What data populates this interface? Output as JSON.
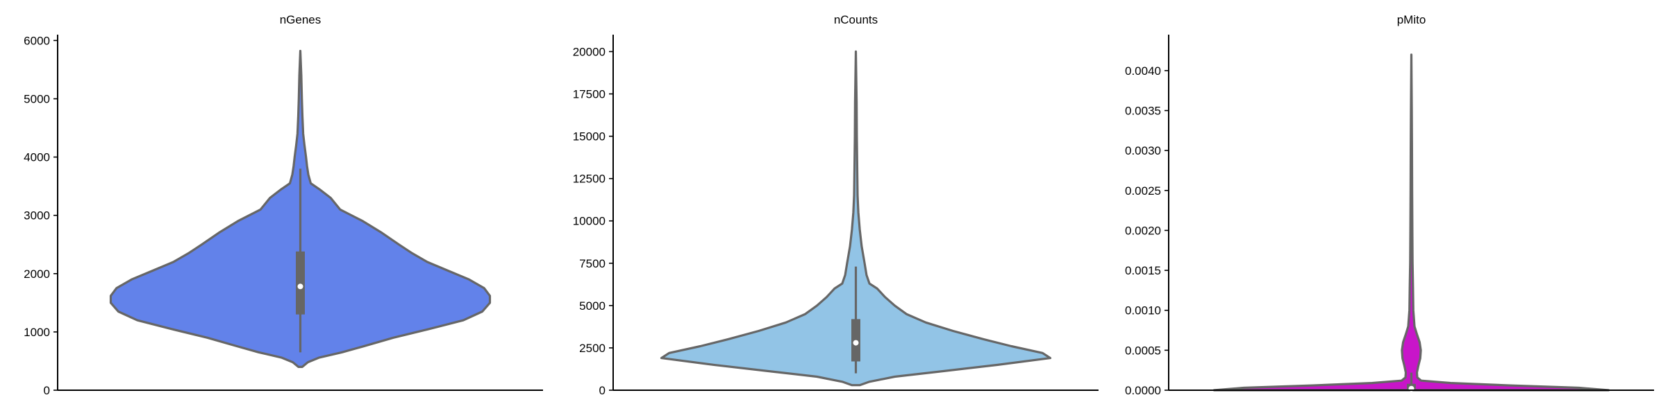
{
  "chart_data": [
    {
      "type": "violin",
      "title": "nGenes",
      "xlabel": "",
      "ylabel": "",
      "ylim": [
        0,
        6100
      ],
      "yticks": [
        0,
        1000,
        2000,
        3000,
        4000,
        5000,
        6000
      ],
      "ytick_labels": [
        "0",
        "1000",
        "2000",
        "3000",
        "4000",
        "5000",
        "6000"
      ],
      "color": "#6282EA",
      "min": 400,
      "max": 5820,
      "quartiles": [
        1300,
        1780,
        2380
      ],
      "whisker": [
        650,
        3800
      ],
      "density": [
        [
          400,
          0.01
        ],
        [
          480,
          0.04
        ],
        [
          560,
          0.1
        ],
        [
          650,
          0.22
        ],
        [
          750,
          0.33
        ],
        [
          900,
          0.49
        ],
        [
          1050,
          0.68
        ],
        [
          1200,
          0.86
        ],
        [
          1350,
          0.96
        ],
        [
          1500,
          1.0
        ],
        [
          1620,
          1.0
        ],
        [
          1750,
          0.97
        ],
        [
          1900,
          0.89
        ],
        [
          2050,
          0.78
        ],
        [
          2200,
          0.67
        ],
        [
          2350,
          0.59
        ],
        [
          2500,
          0.52
        ],
        [
          2700,
          0.43
        ],
        [
          2900,
          0.33
        ],
        [
          3100,
          0.21
        ],
        [
          3300,
          0.16
        ],
        [
          3450,
          0.1
        ],
        [
          3550,
          0.055
        ],
        [
          3700,
          0.042
        ],
        [
          3850,
          0.035
        ],
        [
          4000,
          0.03
        ],
        [
          4200,
          0.022
        ],
        [
          4400,
          0.015
        ],
        [
          4700,
          0.011
        ],
        [
          5000,
          0.008
        ],
        [
          5400,
          0.005
        ],
        [
          5820,
          0.0
        ]
      ]
    },
    {
      "type": "violin",
      "title": "nCounts",
      "xlabel": "",
      "ylabel": "",
      "ylim": [
        0,
        21000
      ],
      "yticks": [
        0,
        2500,
        5000,
        7500,
        10000,
        12500,
        15000,
        17500,
        20000
      ],
      "ytick_labels": [
        "0",
        "2500",
        "5000",
        "7500",
        "10000",
        "12500",
        "15000",
        "17500",
        "20000"
      ],
      "color": "#92C4E6",
      "min": 300,
      "max": 20000,
      "quartiles": [
        1700,
        2800,
        4200
      ],
      "whisker": [
        1000,
        7300
      ],
      "density": [
        [
          300,
          0.02
        ],
        [
          500,
          0.07
        ],
        [
          800,
          0.2
        ],
        [
          1100,
          0.43
        ],
        [
          1500,
          0.73
        ],
        [
          1900,
          1.0
        ],
        [
          2200,
          0.96
        ],
        [
          2600,
          0.8
        ],
        [
          3000,
          0.66
        ],
        [
          3500,
          0.5
        ],
        [
          4000,
          0.36
        ],
        [
          4500,
          0.26
        ],
        [
          5000,
          0.2
        ],
        [
          5500,
          0.15
        ],
        [
          6000,
          0.11
        ],
        [
          6300,
          0.07
        ],
        [
          6800,
          0.055
        ],
        [
          7500,
          0.045
        ],
        [
          8500,
          0.03
        ],
        [
          9500,
          0.02
        ],
        [
          10500,
          0.013
        ],
        [
          11500,
          0.009
        ],
        [
          13000,
          0.007
        ],
        [
          15000,
          0.005
        ],
        [
          17000,
          0.004
        ],
        [
          20000,
          0.0
        ]
      ]
    },
    {
      "type": "violin",
      "title": "pMito",
      "xlabel": "",
      "ylabel": "",
      "ylim": [
        0,
        0.00445
      ],
      "yticks": [
        0,
        0.0005,
        0.001,
        0.0015,
        0.002,
        0.0025,
        0.003,
        0.0035,
        0.004
      ],
      "ytick_labels": [
        "0.0000",
        "0.0005",
        "0.0010",
        "0.0015",
        "0.0020",
        "0.0025",
        "0.0030",
        "0.0035",
        "0.0040"
      ],
      "color": "#C815C9",
      "min": 0,
      "max": 0.0042,
      "quartiles": [
        0,
        2e-05,
        8e-05
      ],
      "whisker": [
        0,
        0.00022
      ],
      "density": [
        [
          0,
          1.0
        ],
        [
          3e-05,
          0.85
        ],
        [
          6e-05,
          0.5
        ],
        [
          9e-05,
          0.2
        ],
        [
          0.00012,
          0.05
        ],
        [
          0.00016,
          0.03
        ],
        [
          0.00022,
          0.028
        ],
        [
          0.0003,
          0.035
        ],
        [
          0.0004,
          0.045
        ],
        [
          0.0005,
          0.048
        ],
        [
          0.0006,
          0.042
        ],
        [
          0.0007,
          0.028
        ],
        [
          0.0008,
          0.016
        ],
        [
          0.001,
          0.01
        ],
        [
          0.0013,
          0.008
        ],
        [
          0.0016,
          0.006
        ],
        [
          0.002,
          0.005
        ],
        [
          0.0025,
          0.004
        ],
        [
          0.003,
          0.003
        ],
        [
          0.0035,
          0.002
        ],
        [
          0.0042,
          0.0
        ]
      ]
    }
  ]
}
